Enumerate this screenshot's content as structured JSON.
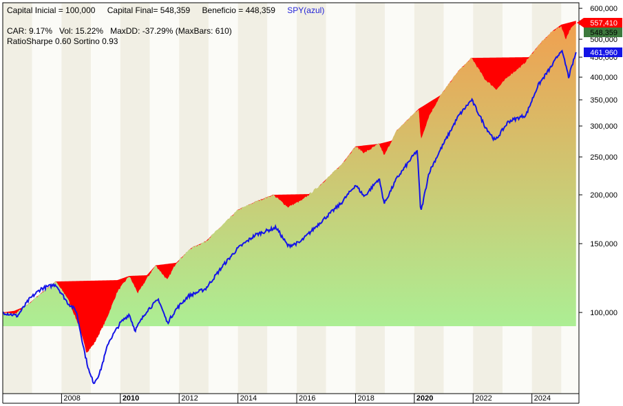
{
  "header": {
    "line1": [
      {
        "text": "Capital Inicial = 100,000",
        "color": "#000000"
      },
      {
        "text": "Capital Final= 548,359",
        "color": "#000000"
      },
      {
        "text": "Beneficio = 448,359",
        "color": "#000000"
      },
      {
        "text": "SPY(azul)",
        "color": "#1f1fd6"
      }
    ],
    "line2": "CAR: 9.17%   Vol: 15.22%   MaxDD: -37.29% (MaxBars: 610)",
    "line3": "RatioSharpe 0.60 Sortino 0.93"
  },
  "colors": {
    "equity_fill_top": "#f0a050",
    "equity_fill_bottom": "#a6f59a",
    "drawdown": "#ff0000",
    "spy_line": "#1414e6",
    "tag_red": "#ff0000",
    "tag_green": "#3d7a3d",
    "tag_blue": "#1414e6"
  },
  "chart_data": {
    "type": "area",
    "y_scale": "log",
    "ylim": [
      62000,
      620000
    ],
    "xlim": [
      2006.0,
      2025.6
    ],
    "y_ticks": [
      {
        "value": 100000,
        "label": "100,000"
      },
      {
        "value": 150000,
        "label": "150,000"
      },
      {
        "value": 200000,
        "label": "200,000"
      },
      {
        "value": 250000,
        "label": "250,000"
      },
      {
        "value": 300000,
        "label": "300,000"
      },
      {
        "value": 350000,
        "label": "350,000"
      },
      {
        "value": 400000,
        "label": "400,000"
      },
      {
        "value": 450000,
        "label": "450,000"
      },
      {
        "value": 500000,
        "label": "500,000"
      },
      {
        "value": 550000,
        "label": "550,000"
      },
      {
        "value": 600000,
        "label": "600,000"
      }
    ],
    "x_ticks": [
      {
        "value": 2008,
        "label": "2008",
        "bold": false
      },
      {
        "value": 2010,
        "label": "2010",
        "bold": true
      },
      {
        "value": 2012,
        "label": "2012",
        "bold": false
      },
      {
        "value": 2014,
        "label": "2014",
        "bold": false
      },
      {
        "value": 2016,
        "label": "2016",
        "bold": false
      },
      {
        "value": 2018,
        "label": "2018",
        "bold": false
      },
      {
        "value": 2020,
        "label": "2020",
        "bold": true
      },
      {
        "value": 2022,
        "label": "2022",
        "bold": false
      },
      {
        "value": 2024,
        "label": "2024",
        "bold": false
      }
    ],
    "last_values": [
      {
        "label": "557,410",
        "value": 557410,
        "color": "#ff0000",
        "text_color": "#ff0000",
        "pointer": true
      },
      {
        "label": "548,359",
        "value": 548359,
        "color": "#3d7a3d",
        "text_color": "#000000",
        "pointer": false
      },
      {
        "label": "461,960",
        "value": 461960,
        "color": "#1414e6",
        "text_color": "#ffffff",
        "pointer": false
      }
    ],
    "series": [
      {
        "kind": "equity",
        "points": [
          [
            2006.0,
            100000
          ],
          [
            2006.4,
            99000
          ],
          [
            2006.8,
            104000
          ],
          [
            2007.3,
            112000
          ],
          [
            2007.8,
            120000
          ],
          [
            2008.2,
            109000
          ],
          [
            2008.6,
            92000
          ],
          [
            2008.85,
            79000
          ],
          [
            2009.1,
            83000
          ],
          [
            2009.5,
            95000
          ],
          [
            2009.9,
            113000
          ],
          [
            2010.3,
            124000
          ],
          [
            2010.6,
            112000
          ],
          [
            2010.9,
            122000
          ],
          [
            2011.2,
            132000
          ],
          [
            2011.6,
            121000
          ],
          [
            2011.9,
            134000
          ],
          [
            2012.4,
            146000
          ],
          [
            2012.9,
            152000
          ],
          [
            2013.5,
            168000
          ],
          [
            2014.0,
            183000
          ],
          [
            2014.6,
            192000
          ],
          [
            2015.2,
            200000
          ],
          [
            2015.7,
            186000
          ],
          [
            2016.2,
            194000
          ],
          [
            2016.8,
            212000
          ],
          [
            2017.5,
            238000
          ],
          [
            2018.0,
            266000
          ],
          [
            2018.3,
            256000
          ],
          [
            2018.8,
            270000
          ],
          [
            2018.98,
            252000
          ],
          [
            2019.4,
            292000
          ],
          [
            2019.9,
            318000
          ],
          [
            2020.15,
            332000
          ],
          [
            2020.22,
            276000
          ],
          [
            2020.5,
            318000
          ],
          [
            2020.9,
            360000
          ],
          [
            2021.5,
            415000
          ],
          [
            2021.95,
            448000
          ],
          [
            2022.4,
            395000
          ],
          [
            2022.8,
            372000
          ],
          [
            2023.2,
            402000
          ],
          [
            2023.7,
            430000
          ],
          [
            2024.2,
            480000
          ],
          [
            2024.7,
            525000
          ],
          [
            2025.0,
            540000
          ],
          [
            2025.15,
            500000
          ],
          [
            2025.3,
            530000
          ],
          [
            2025.5,
            548359
          ]
        ]
      },
      {
        "kind": "peak",
        "points": [
          [
            2006.0,
            100000
          ],
          [
            2006.4,
            101000
          ],
          [
            2006.8,
            104000
          ],
          [
            2007.3,
            112000
          ],
          [
            2007.8,
            120000
          ],
          [
            2009.9,
            121000
          ],
          [
            2010.3,
            124000
          ],
          [
            2010.9,
            124500
          ],
          [
            2011.2,
            132000
          ],
          [
            2011.9,
            134000
          ],
          [
            2012.4,
            146000
          ],
          [
            2012.9,
            152000
          ],
          [
            2013.5,
            168000
          ],
          [
            2014.0,
            183000
          ],
          [
            2014.6,
            192000
          ],
          [
            2015.2,
            200000
          ],
          [
            2016.6,
            201000
          ],
          [
            2016.8,
            212000
          ],
          [
            2017.5,
            238000
          ],
          [
            2018.0,
            266000
          ],
          [
            2018.8,
            270000
          ],
          [
            2019.3,
            276000
          ],
          [
            2019.4,
            292000
          ],
          [
            2019.9,
            318000
          ],
          [
            2020.15,
            332000
          ],
          [
            2020.9,
            360000
          ],
          [
            2021.5,
            415000
          ],
          [
            2021.95,
            448000
          ],
          [
            2023.9,
            450000
          ],
          [
            2024.2,
            480000
          ],
          [
            2024.7,
            525000
          ],
          [
            2025.0,
            545000
          ],
          [
            2025.5,
            557410
          ]
        ]
      },
      {
        "kind": "spy",
        "name": "SPY(azul)",
        "points": [
          [
            2006.0,
            100000
          ],
          [
            2006.5,
            98000
          ],
          [
            2006.9,
            108000
          ],
          [
            2007.3,
            115000
          ],
          [
            2007.8,
            118000
          ],
          [
            2008.2,
            106000
          ],
          [
            2008.5,
            101000
          ],
          [
            2008.8,
            78000
          ],
          [
            2008.95,
            70000
          ],
          [
            2009.1,
            66000
          ],
          [
            2009.3,
            70000
          ],
          [
            2009.6,
            84000
          ],
          [
            2010.0,
            94000
          ],
          [
            2010.3,
            99000
          ],
          [
            2010.5,
            90000
          ],
          [
            2010.9,
            101000
          ],
          [
            2011.3,
            108000
          ],
          [
            2011.6,
            94000
          ],
          [
            2011.9,
            102000
          ],
          [
            2012.3,
            110000
          ],
          [
            2012.9,
            115000
          ],
          [
            2013.5,
            132000
          ],
          [
            2014.0,
            146000
          ],
          [
            2014.6,
            158000
          ],
          [
            2015.3,
            165000
          ],
          [
            2015.7,
            148000
          ],
          [
            2016.1,
            151000
          ],
          [
            2016.8,
            170000
          ],
          [
            2017.5,
            190000
          ],
          [
            2018.0,
            212000
          ],
          [
            2018.3,
            198000
          ],
          [
            2018.8,
            220000
          ],
          [
            2018.98,
            190000
          ],
          [
            2019.4,
            220000
          ],
          [
            2019.9,
            248000
          ],
          [
            2020.1,
            260000
          ],
          [
            2020.22,
            180000
          ],
          [
            2020.5,
            228000
          ],
          [
            2020.9,
            262000
          ],
          [
            2021.5,
            318000
          ],
          [
            2021.95,
            350000
          ],
          [
            2022.4,
            300000
          ],
          [
            2022.75,
            275000
          ],
          [
            2023.2,
            308000
          ],
          [
            2023.8,
            320000
          ],
          [
            2024.2,
            380000
          ],
          [
            2024.7,
            430000
          ],
          [
            2025.0,
            470000
          ],
          [
            2025.15,
            430000
          ],
          [
            2025.25,
            400000
          ],
          [
            2025.5,
            461960
          ]
        ]
      }
    ]
  }
}
